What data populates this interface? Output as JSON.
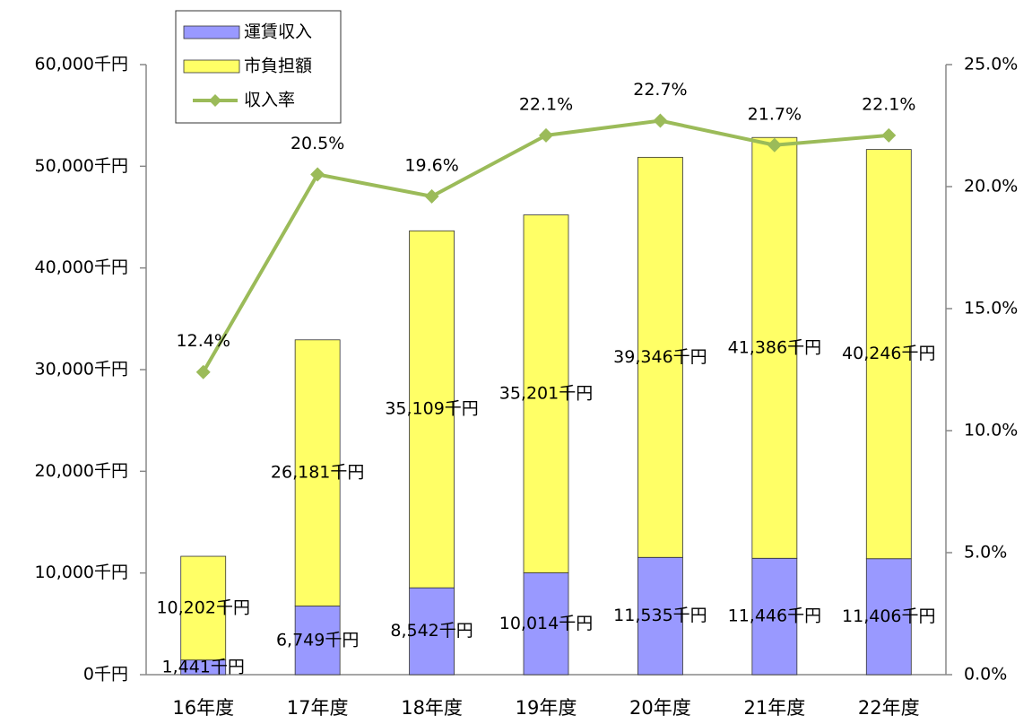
{
  "chart_data": {
    "type": "bar",
    "stacked": true,
    "categories": [
      "16年度",
      "17年度",
      "18年度",
      "19年度",
      "20年度",
      "21年度",
      "22年度"
    ],
    "series": [
      {
        "name": "運賃収入",
        "color": "#9999ff",
        "values": [
          1441,
          6749,
          8542,
          10014,
          11535,
          11446,
          11406
        ],
        "value_labels": [
          "1,441千円",
          "6,749千円",
          "8,542千円",
          "10,014千円",
          "11,535千円",
          "11,446千円",
          "11,406千円"
        ]
      },
      {
        "name": "市負担額",
        "color": "#ffff66",
        "values": [
          10202,
          26181,
          35109,
          35201,
          39346,
          41386,
          40246
        ],
        "value_labels": [
          "10,202千円",
          "26,181千円",
          "35,109千円",
          "35,201千円",
          "39,346千円",
          "41,386千円",
          "40,246千円"
        ]
      },
      {
        "name": "収入率",
        "type": "line",
        "axis": "y2",
        "color": "#9bbb59",
        "values": [
          12.4,
          20.5,
          19.6,
          22.1,
          22.7,
          21.7,
          22.1
        ],
        "value_labels": [
          "12.4%",
          "20.5%",
          "19.6%",
          "22.1%",
          "22.7%",
          "21.7%",
          "22.1%"
        ]
      }
    ],
    "ylim": [
      0,
      60000
    ],
    "yticks": [
      {
        "value": 0,
        "label": "0千円"
      },
      {
        "value": 10000,
        "label": "10,000千円"
      },
      {
        "value": 20000,
        "label": "20,000千円"
      },
      {
        "value": 30000,
        "label": "30,000千円"
      },
      {
        "value": 40000,
        "label": "40,000千円"
      },
      {
        "value": 50000,
        "label": "50,000千円"
      },
      {
        "value": 60000,
        "label": "60,000千円"
      }
    ],
    "y2lim": [
      0,
      25
    ],
    "y2ticks": [
      {
        "value": 0,
        "label": "0.0%"
      },
      {
        "value": 5,
        "label": "5.0%"
      },
      {
        "value": 10,
        "label": "10.0%"
      },
      {
        "value": 15,
        "label": "15.0%"
      },
      {
        "value": 20,
        "label": "20.0%"
      },
      {
        "value": 25,
        "label": "25.0%"
      }
    ],
    "legend": "top-left",
    "grid": false
  }
}
